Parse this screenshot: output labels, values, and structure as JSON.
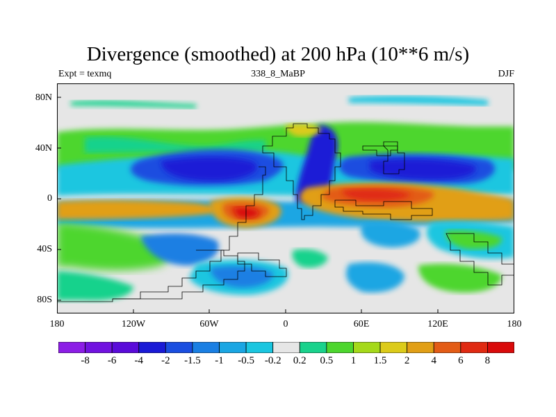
{
  "header": {
    "title": "Divergence (smoothed) at 200 hPa (10**6 m/s)",
    "left": "Expt = texmq",
    "center": "338_8_MaBP",
    "right": "DJF"
  },
  "axes": {
    "y_ticks": [
      "80N",
      "40N",
      "0",
      "40S",
      "80S"
    ],
    "x_ticks": [
      "180",
      "120W",
      "60W",
      "0",
      "60E",
      "120E",
      "180"
    ]
  },
  "colorbar": {
    "labels": [
      "-8",
      "-6",
      "-4",
      "-2",
      "-1.5",
      "-1",
      "-0.5",
      "-0.2",
      "0.2",
      "0.5",
      "1",
      "1.5",
      "2",
      "4",
      "6",
      "8"
    ],
    "colors": [
      "#8c1de6",
      "#7112e0",
      "#5a0bd9",
      "#1a1ad6",
      "#1a4ee0",
      "#1a7fe3",
      "#1aa6e3",
      "#1ac6e0",
      "#e6e6e6",
      "#19d28c",
      "#4dd62e",
      "#a5d91a",
      "#dccb1a",
      "#e19f16",
      "#e35c16",
      "#e02a12",
      "#d90a0a"
    ]
  }
}
